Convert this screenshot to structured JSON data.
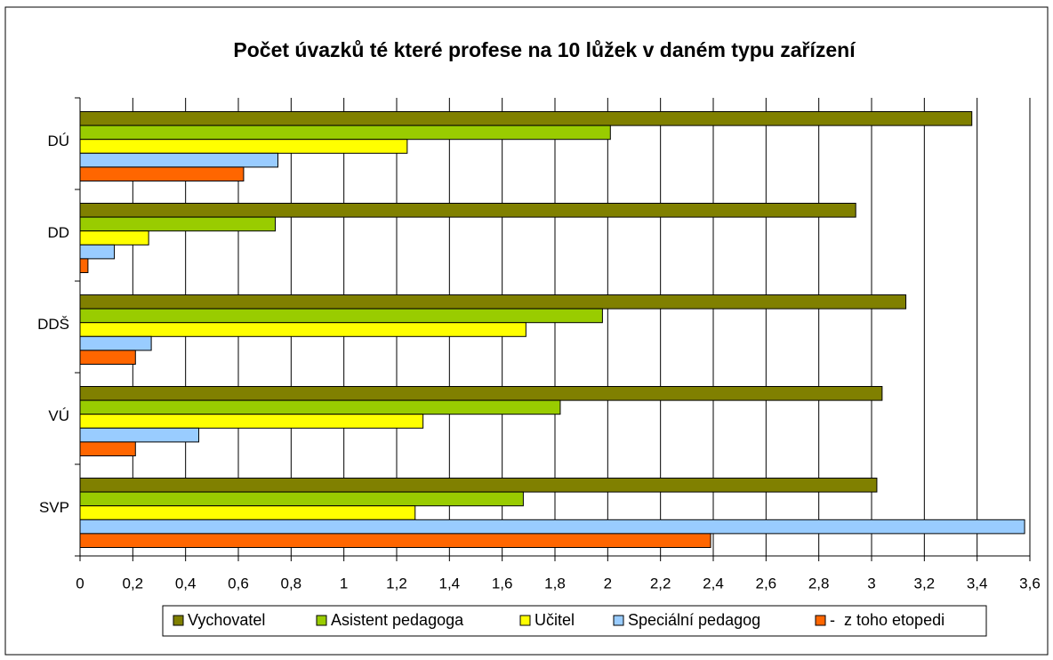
{
  "chart_data": {
    "type": "bar",
    "orientation": "horizontal",
    "title": "Počet úvazků té které profese na 10 lůžek v daném typu zařízení",
    "categories": [
      "DÚ",
      "DD",
      "DDŠ",
      "VÚ",
      "SVP"
    ],
    "series": [
      {
        "name": "Vychovatel",
        "color": "#808000",
        "values": [
          3.38,
          2.94,
          3.13,
          3.04,
          3.02
        ]
      },
      {
        "name": "Asistent pedagoga",
        "color": "#99cc00",
        "values": [
          2.01,
          0.74,
          1.98,
          1.82,
          1.68
        ]
      },
      {
        "name": "Učitel",
        "color": "#ffff00",
        "values": [
          1.24,
          0.26,
          1.69,
          1.3,
          1.27
        ]
      },
      {
        "name": "Speciální pedagog",
        "color": "#99ccff",
        "values": [
          0.75,
          0.13,
          0.27,
          0.45,
          3.58
        ]
      },
      {
        "name": "-  z toho etopedi",
        "color": "#ff6600",
        "values": [
          0.62,
          0.03,
          0.21,
          0.21,
          2.39
        ]
      }
    ],
    "xlim": [
      0,
      3.6
    ],
    "xticks": [
      0,
      {
        "value": 0.2,
        "label": "0,2"
      },
      {
        "value": 0.4,
        "label": "0,4"
      },
      {
        "value": 0.6,
        "label": "0,6"
      },
      {
        "value": 0.8,
        "label": "0,8"
      },
      1,
      {
        "value": 1.2,
        "label": "1,2"
      },
      {
        "value": 1.4,
        "label": "1,4"
      },
      {
        "value": 1.6,
        "label": "1,6"
      },
      {
        "value": 1.8,
        "label": "1,8"
      },
      2,
      {
        "value": 2.2,
        "label": "2,2"
      },
      {
        "value": 2.4,
        "label": "2,4"
      },
      {
        "value": 2.6,
        "label": "2,6"
      },
      {
        "value": 2.8,
        "label": "2,8"
      },
      3,
      {
        "value": 3.2,
        "label": "3,2"
      },
      {
        "value": 3.4,
        "label": "3,4"
      },
      {
        "value": 3.6,
        "label": "3,6"
      }
    ],
    "grid": true,
    "legend": "bottom"
  }
}
